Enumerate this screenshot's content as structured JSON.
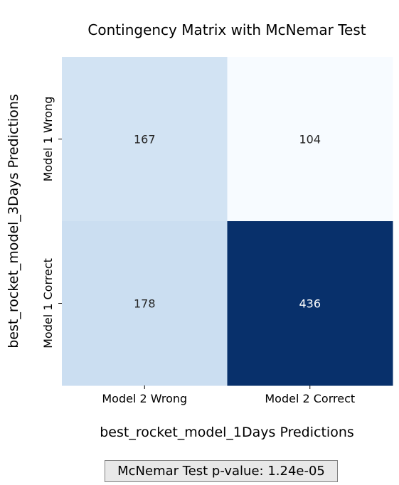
{
  "chart_data": {
    "type": "heatmap",
    "title": "Contingency Matrix with McNemar Test",
    "xlabel": "best_rocket_model_1Days Predictions",
    "ylabel": "best_rocket_model_3Days Predictions",
    "x_categories": [
      "Model 2 Wrong",
      "Model 2 Correct"
    ],
    "y_categories": [
      "Model 1 Wrong",
      "Model 1 Correct"
    ],
    "values": [
      [
        167,
        104
      ],
      [
        178,
        436
      ]
    ],
    "colormap": "Blues",
    "colorbar": false,
    "annotation": "McNemar Test p-value: 1.24e-05"
  }
}
